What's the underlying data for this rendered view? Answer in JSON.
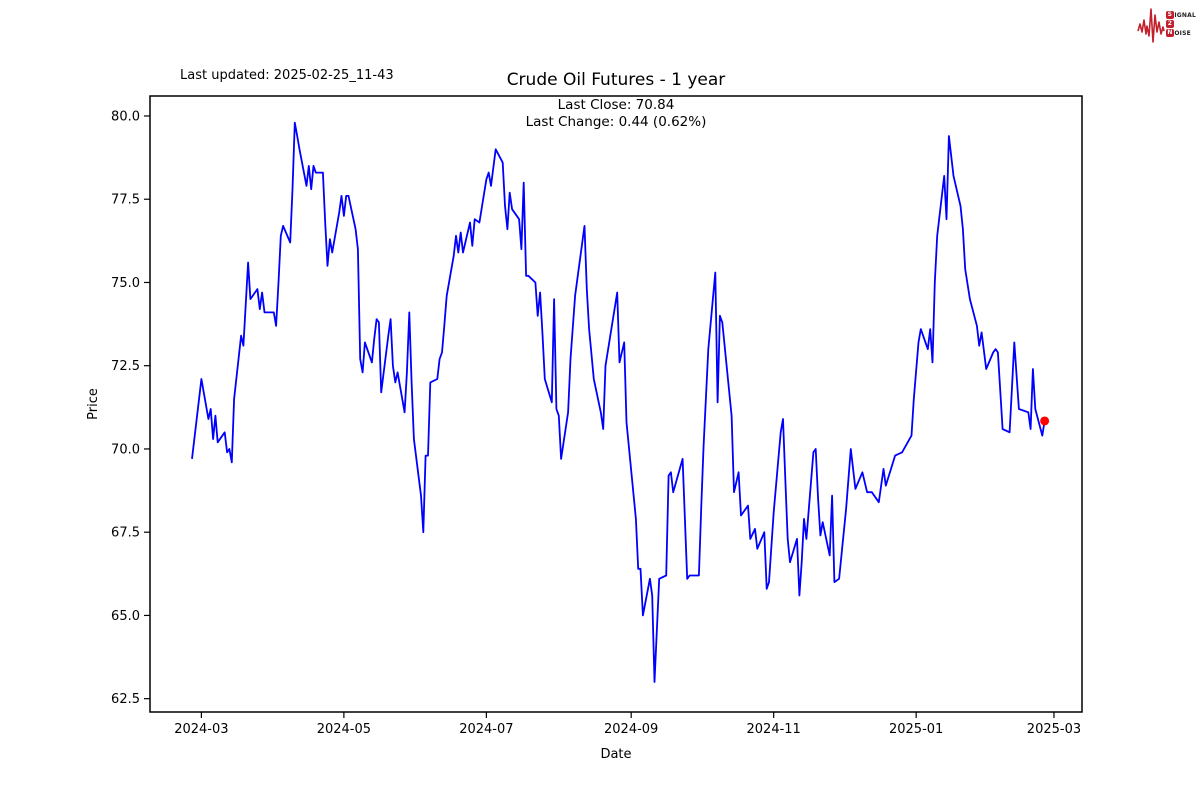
{
  "colors": {
    "line": "#0000ff",
    "marker": "#ff0000",
    "logo_accent": "#C2202C",
    "axis": "#000000",
    "background": "#ffffff"
  },
  "annotations": {
    "last_updated": "Last updated: 2025-02-25_11-43"
  },
  "logo": {
    "line1_initial": "S",
    "line1_rest": "IGNAL",
    "line2_initial": "2",
    "line2_rest": "",
    "line3_initial": "N",
    "line3_rest": "OISE"
  },
  "chart_data": {
    "type": "line",
    "title": "Crude Oil Futures - 1 year",
    "subtitle_lines": [
      "Last Close: 70.84",
      "Last Change: 0.44 (0.62%)"
    ],
    "xlabel": "Date",
    "ylabel": "Price",
    "grid": false,
    "legend": "none",
    "x_domain": [
      "2024-02-08",
      "2025-03-13"
    ],
    "ylim": [
      62.1,
      80.6
    ],
    "y_ticks": [
      {
        "value": 62.5,
        "label": "62.5"
      },
      {
        "value": 65.0,
        "label": "65.0"
      },
      {
        "value": 67.5,
        "label": "67.5"
      },
      {
        "value": 70.0,
        "label": "70.0"
      },
      {
        "value": 72.5,
        "label": "72.5"
      },
      {
        "value": 75.0,
        "label": "75.0"
      },
      {
        "value": 77.5,
        "label": "77.5"
      },
      {
        "value": 80.0,
        "label": "80.0"
      }
    ],
    "x_ticks": [
      {
        "date": "2024-03-01",
        "label": "2024-03"
      },
      {
        "date": "2024-05-01",
        "label": "2024-05"
      },
      {
        "date": "2024-07-01",
        "label": "2024-07"
      },
      {
        "date": "2024-09-01",
        "label": "2024-09"
      },
      {
        "date": "2024-11-01",
        "label": "2024-11"
      },
      {
        "date": "2025-01-01",
        "label": "2025-01"
      },
      {
        "date": "2025-03-01",
        "label": "2025-03"
      }
    ],
    "last_point": {
      "date": "2025-02-25",
      "price": 70.84
    },
    "last_close": 70.84,
    "last_change": 0.44,
    "last_change_pct": 0.62,
    "series": [
      {
        "name": "Price",
        "points": [
          [
            "2024-02-26",
            69.7
          ],
          [
            "2024-02-28",
            70.9
          ],
          [
            "2024-03-01",
            72.1
          ],
          [
            "2024-03-04",
            70.9
          ],
          [
            "2024-03-05",
            71.2
          ],
          [
            "2024-03-06",
            70.3
          ],
          [
            "2024-03-07",
            71.0
          ],
          [
            "2024-03-08",
            70.2
          ],
          [
            "2024-03-11",
            70.5
          ],
          [
            "2024-03-12",
            69.9
          ],
          [
            "2024-03-13",
            70.0
          ],
          [
            "2024-03-14",
            69.6
          ],
          [
            "2024-03-15",
            71.5
          ],
          [
            "2024-03-18",
            73.4
          ],
          [
            "2024-03-19",
            73.1
          ],
          [
            "2024-03-21",
            75.6
          ],
          [
            "2024-03-22",
            74.5
          ],
          [
            "2024-03-25",
            74.8
          ],
          [
            "2024-03-26",
            74.2
          ],
          [
            "2024-03-27",
            74.7
          ],
          [
            "2024-03-28",
            74.1
          ],
          [
            "2024-04-01",
            74.1
          ],
          [
            "2024-04-02",
            73.7
          ],
          [
            "2024-04-03",
            75.0
          ],
          [
            "2024-04-04",
            76.4
          ],
          [
            "2024-04-05",
            76.7
          ],
          [
            "2024-04-08",
            76.2
          ],
          [
            "2024-04-09",
            77.8
          ],
          [
            "2024-04-10",
            79.8
          ],
          [
            "2024-04-11",
            79.4
          ],
          [
            "2024-04-12",
            79.0
          ],
          [
            "2024-04-15",
            77.9
          ],
          [
            "2024-04-16",
            78.5
          ],
          [
            "2024-04-17",
            77.8
          ],
          [
            "2024-04-18",
            78.5
          ],
          [
            "2024-04-19",
            78.3
          ],
          [
            "2024-04-22",
            78.3
          ],
          [
            "2024-04-23",
            76.8
          ],
          [
            "2024-04-24",
            75.5
          ],
          [
            "2024-04-25",
            76.3
          ],
          [
            "2024-04-26",
            75.9
          ],
          [
            "2024-04-29",
            77.1
          ],
          [
            "2024-04-30",
            77.6
          ],
          [
            "2024-05-01",
            77.0
          ],
          [
            "2024-05-02",
            77.6
          ],
          [
            "2024-05-03",
            77.6
          ],
          [
            "2024-05-06",
            76.6
          ],
          [
            "2024-05-07",
            76.0
          ],
          [
            "2024-05-08",
            72.7
          ],
          [
            "2024-05-09",
            72.3
          ],
          [
            "2024-05-10",
            73.2
          ],
          [
            "2024-05-13",
            72.6
          ],
          [
            "2024-05-14",
            73.3
          ],
          [
            "2024-05-15",
            73.9
          ],
          [
            "2024-05-16",
            73.8
          ],
          [
            "2024-05-17",
            71.7
          ],
          [
            "2024-05-20",
            73.4
          ],
          [
            "2024-05-21",
            73.9
          ],
          [
            "2024-05-22",
            72.5
          ],
          [
            "2024-05-23",
            72.0
          ],
          [
            "2024-05-24",
            72.3
          ],
          [
            "2024-05-27",
            71.1
          ],
          [
            "2024-05-28",
            72.3
          ],
          [
            "2024-05-29",
            74.1
          ],
          [
            "2024-05-30",
            72.0
          ],
          [
            "2024-05-31",
            70.3
          ],
          [
            "2024-06-03",
            68.6
          ],
          [
            "2024-06-04",
            67.5
          ],
          [
            "2024-06-05",
            69.8
          ],
          [
            "2024-06-06",
            69.8
          ],
          [
            "2024-06-07",
            72.0
          ],
          [
            "2024-06-10",
            72.1
          ],
          [
            "2024-06-11",
            72.7
          ],
          [
            "2024-06-12",
            72.9
          ],
          [
            "2024-06-13",
            73.7
          ],
          [
            "2024-06-14",
            74.6
          ],
          [
            "2024-06-17",
            75.8
          ],
          [
            "2024-06-18",
            76.4
          ],
          [
            "2024-06-19",
            75.9
          ],
          [
            "2024-06-20",
            76.5
          ],
          [
            "2024-06-21",
            75.9
          ],
          [
            "2024-06-24",
            76.8
          ],
          [
            "2024-06-25",
            76.1
          ],
          [
            "2024-06-26",
            76.9
          ],
          [
            "2024-06-28",
            76.8
          ],
          [
            "2024-07-01",
            78.1
          ],
          [
            "2024-07-02",
            78.3
          ],
          [
            "2024-07-03",
            77.9
          ],
          [
            "2024-07-05",
            79.0
          ],
          [
            "2024-07-08",
            78.6
          ],
          [
            "2024-07-09",
            77.3
          ],
          [
            "2024-07-10",
            76.6
          ],
          [
            "2024-07-11",
            77.7
          ],
          [
            "2024-07-12",
            77.2
          ],
          [
            "2024-07-15",
            76.9
          ],
          [
            "2024-07-16",
            76.0
          ],
          [
            "2024-07-17",
            78.0
          ],
          [
            "2024-07-18",
            75.2
          ],
          [
            "2024-07-19",
            75.2
          ],
          [
            "2024-07-22",
            75.0
          ],
          [
            "2024-07-23",
            74.0
          ],
          [
            "2024-07-24",
            74.7
          ],
          [
            "2024-07-25",
            73.5
          ],
          [
            "2024-07-26",
            72.1
          ],
          [
            "2024-07-29",
            71.4
          ],
          [
            "2024-07-30",
            74.5
          ],
          [
            "2024-07-31",
            71.2
          ],
          [
            "2024-08-01",
            71.0
          ],
          [
            "2024-08-02",
            69.7
          ],
          [
            "2024-08-05",
            71.1
          ],
          [
            "2024-08-06",
            72.7
          ],
          [
            "2024-08-08",
            74.6
          ],
          [
            "2024-08-12",
            76.7
          ],
          [
            "2024-08-13",
            74.8
          ],
          [
            "2024-08-14",
            73.6
          ],
          [
            "2024-08-16",
            72.1
          ],
          [
            "2024-08-19",
            71.1
          ],
          [
            "2024-08-20",
            70.6
          ],
          [
            "2024-08-21",
            72.5
          ],
          [
            "2024-08-26",
            74.7
          ],
          [
            "2024-08-27",
            72.6
          ],
          [
            "2024-08-29",
            73.2
          ],
          [
            "2024-08-30",
            70.8
          ],
          [
            "2024-09-03",
            67.9
          ],
          [
            "2024-09-04",
            66.4
          ],
          [
            "2024-09-05",
            66.4
          ],
          [
            "2024-09-06",
            65.0
          ],
          [
            "2024-09-09",
            66.1
          ],
          [
            "2024-09-10",
            65.6
          ],
          [
            "2024-09-11",
            63.0
          ],
          [
            "2024-09-13",
            66.1
          ],
          [
            "2024-09-16",
            66.2
          ],
          [
            "2024-09-17",
            69.2
          ],
          [
            "2024-09-18",
            69.3
          ],
          [
            "2024-09-19",
            68.7
          ],
          [
            "2024-09-23",
            69.7
          ],
          [
            "2024-09-25",
            66.1
          ],
          [
            "2024-09-26",
            66.2
          ],
          [
            "2024-09-30",
            66.2
          ],
          [
            "2024-10-01",
            68.3
          ],
          [
            "2024-10-02",
            70.1
          ],
          [
            "2024-10-04",
            73.0
          ],
          [
            "2024-10-07",
            75.3
          ],
          [
            "2024-10-08",
            71.4
          ],
          [
            "2024-10-09",
            74.0
          ],
          [
            "2024-10-10",
            73.8
          ],
          [
            "2024-10-14",
            71.0
          ],
          [
            "2024-10-15",
            68.7
          ],
          [
            "2024-10-17",
            69.3
          ],
          [
            "2024-10-18",
            68.0
          ],
          [
            "2024-10-21",
            68.3
          ],
          [
            "2024-10-22",
            67.3
          ],
          [
            "2024-10-24",
            67.6
          ],
          [
            "2024-10-25",
            67.0
          ],
          [
            "2024-10-28",
            67.5
          ],
          [
            "2024-10-29",
            65.8
          ],
          [
            "2024-10-30",
            66.0
          ],
          [
            "2024-11-01",
            68.1
          ],
          [
            "2024-11-04",
            70.5
          ],
          [
            "2024-11-05",
            70.9
          ],
          [
            "2024-11-06",
            69.1
          ],
          [
            "2024-11-07",
            67.3
          ],
          [
            "2024-11-08",
            66.6
          ],
          [
            "2024-11-11",
            67.3
          ],
          [
            "2024-11-12",
            65.6
          ],
          [
            "2024-11-13",
            66.6
          ],
          [
            "2024-11-14",
            67.9
          ],
          [
            "2024-11-15",
            67.3
          ],
          [
            "2024-11-18",
            69.9
          ],
          [
            "2024-11-19",
            70.0
          ],
          [
            "2024-11-20",
            68.5
          ],
          [
            "2024-11-21",
            67.4
          ],
          [
            "2024-11-22",
            67.8
          ],
          [
            "2024-11-25",
            66.8
          ],
          [
            "2024-11-26",
            68.6
          ],
          [
            "2024-11-27",
            66.0
          ],
          [
            "2024-11-29",
            66.1
          ],
          [
            "2024-12-02",
            68.2
          ],
          [
            "2024-12-04",
            70.0
          ],
          [
            "2024-12-06",
            68.8
          ],
          [
            "2024-12-09",
            69.3
          ],
          [
            "2024-12-11",
            68.7
          ],
          [
            "2024-12-13",
            68.7
          ],
          [
            "2024-12-16",
            68.4
          ],
          [
            "2024-12-18",
            69.4
          ],
          [
            "2024-12-19",
            68.9
          ],
          [
            "2024-12-23",
            69.8
          ],
          [
            "2024-12-26",
            69.9
          ],
          [
            "2024-12-30",
            70.4
          ],
          [
            "2024-12-31",
            71.5
          ],
          [
            "2025-01-02",
            73.2
          ],
          [
            "2025-01-03",
            73.6
          ],
          [
            "2025-01-06",
            73.0
          ],
          [
            "2025-01-07",
            73.6
          ],
          [
            "2025-01-08",
            72.6
          ],
          [
            "2025-01-09",
            75.0
          ],
          [
            "2025-01-10",
            76.4
          ],
          [
            "2025-01-13",
            78.2
          ],
          [
            "2025-01-14",
            76.9
          ],
          [
            "2025-01-15",
            79.4
          ],
          [
            "2025-01-17",
            78.2
          ],
          [
            "2025-01-20",
            77.3
          ],
          [
            "2025-01-21",
            76.6
          ],
          [
            "2025-01-22",
            75.4
          ],
          [
            "2025-01-24",
            74.5
          ],
          [
            "2025-01-27",
            73.7
          ],
          [
            "2025-01-28",
            73.1
          ],
          [
            "2025-01-29",
            73.5
          ],
          [
            "2025-01-31",
            72.4
          ],
          [
            "2025-02-03",
            72.9
          ],
          [
            "2025-02-04",
            73.0
          ],
          [
            "2025-02-05",
            72.9
          ],
          [
            "2025-02-07",
            70.6
          ],
          [
            "2025-02-10",
            70.5
          ],
          [
            "2025-02-11",
            71.8
          ],
          [
            "2025-02-12",
            73.2
          ],
          [
            "2025-02-14",
            71.2
          ],
          [
            "2025-02-18",
            71.1
          ],
          [
            "2025-02-19",
            70.6
          ],
          [
            "2025-02-20",
            72.4
          ],
          [
            "2025-02-21",
            71.2
          ],
          [
            "2025-02-24",
            70.4
          ],
          [
            "2025-02-25",
            70.84
          ]
        ]
      }
    ]
  }
}
